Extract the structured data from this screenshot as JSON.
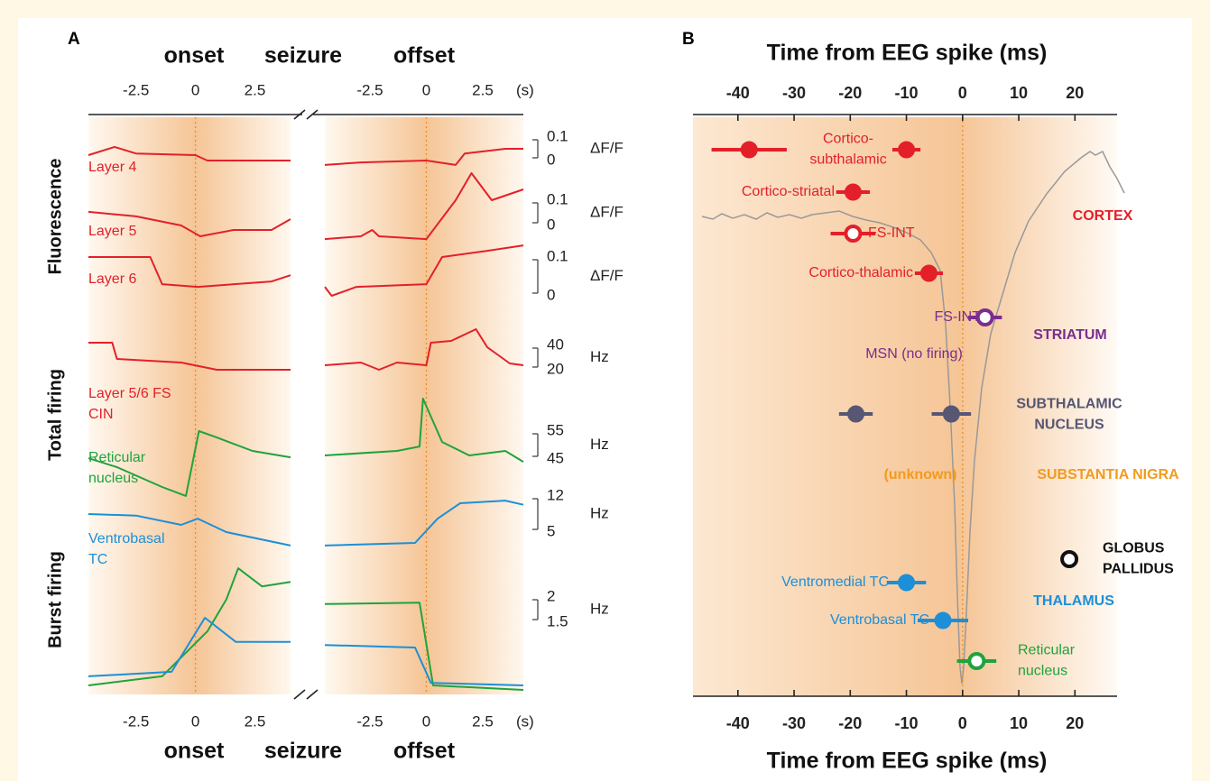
{
  "panel_a": {
    "label": "A",
    "header": [
      "onset",
      "seizure",
      "offset"
    ],
    "x_unit": "(s)",
    "onset": {
      "xlim": [
        -4.5,
        4
      ],
      "xticks": [
        -2.5,
        0,
        2.5
      ]
    },
    "offset": {
      "xlim": [
        -4.5,
        4.3
      ],
      "xticks": [
        -2.5,
        0,
        2.5
      ]
    },
    "groups": [
      "Fluorescence",
      "Total firing",
      "Burst firing"
    ],
    "rows": [
      {
        "ticks": [
          0.1,
          0
        ],
        "unit": "ΔF/F",
        "traces": [
          {
            "name_lines": [
              "Layer 4"
            ],
            "color": "#e3202a",
            "onset": {
              "x": [
                -4.5,
                -3.4,
                -2.5,
                0,
                0.5,
                4
              ],
              "values": [
                0.023,
                0.058,
                0.03,
                0.023,
                0,
                0
              ]
            },
            "offset": {
              "x": [
                -4.5,
                -2.9,
                0,
                1.3,
                1.7,
                3.5,
                4.3
              ],
              "values": [
                -0.019,
                -0.008,
                0,
                -0.019,
                0.03,
                0.05,
                0.05
              ]
            }
          }
        ]
      },
      {
        "ticks": [
          0.1,
          0
        ],
        "unit": "ΔF/F",
        "traces": [
          {
            "name_lines": [
              "Layer 5"
            ],
            "color": "#e3202a",
            "onset": {
              "x": [
                -4.5,
                -2.5,
                -0.6,
                0.2,
                1.6,
                3.2,
                4
              ],
              "values": [
                0.054,
                0.036,
                0,
                -0.043,
                -0.018,
                -0.018,
                0.025
              ]
            },
            "offset": {
              "x": [
                -4.5,
                -2.9,
                -2.4,
                -2.1,
                0,
                1.3,
                2,
                2.9,
                4.3
              ],
              "values": [
                -0.054,
                -0.043,
                -0.018,
                -0.043,
                -0.054,
                0.1,
                0.207,
                0.1,
                0.143
              ]
            }
          }
        ]
      },
      {
        "ticks": [
          0.1,
          0
        ],
        "unit": "ΔF/F",
        "traces": [
          {
            "name_lines": [
              "Layer 6"
            ],
            "color": "#e3202a",
            "onset": {
              "x": [
                -4.5,
                -1.9,
                -1.4,
                0.1,
                3.2,
                4
              ],
              "values": [
                0.1,
                0.1,
                0.03,
                0.023,
                0.037,
                0.053
              ]
            },
            "offset": {
              "x": [
                -4.5,
                -4.2,
                -3.1,
                0,
                0.7,
                2.7,
                4.3
              ],
              "values": [
                0.023,
                0,
                0.023,
                0.03,
                0.1,
                0.116,
                0.13
              ]
            }
          }
        ]
      },
      {
        "ticks": [
          40,
          20
        ],
        "unit": "Hz",
        "traces": [
          {
            "name_lines": [
              "Layer 5/6 FS",
              "CIN"
            ],
            "color": "#e3202a",
            "onset": {
              "x": [
                -4.5,
                -3.5,
                -3.3,
                -0.6,
                0.9,
                4
              ],
              "values": [
                42.2,
                42.2,
                28.9,
                25.9,
                20,
                20
              ]
            },
            "offset": {
              "x": [
                -4.5,
                -2.9,
                -2.1,
                -1.3,
                0,
                0.2,
                1.1,
                2.2,
                2.7,
                3.7,
                4.3
              ],
              "values": [
                23.7,
                25.9,
                20,
                25.9,
                23.7,
                42.2,
                43.7,
                53.3,
                38.5,
                25.2,
                23.7
              ]
            }
          }
        ]
      },
      {
        "ticks": [
          55,
          45
        ],
        "unit": "Hz",
        "traces": [
          {
            "name_lines": [
              "Reticular",
              "nucleus"
            ],
            "color": "#1fa33d",
            "onset": {
              "x": [
                -4.5,
                -3.3,
                -1.4,
                -0.4,
                0.15,
                0.9,
                2.4,
                4
              ],
              "values": [
                45.3,
                42.1,
                35,
                31.8,
                55,
                52.7,
                47.9,
                45.6
              ]
            },
            "offset": {
              "x": [
                -4.5,
                -1.3,
                -0.3,
                -0.15,
                0.7,
                1.9,
                3.5,
                4.3
              ],
              "values": [
                46.3,
                47.9,
                49.5,
                66.6,
                51.1,
                46.3,
                47.9,
                44
              ]
            }
          }
        ]
      },
      {
        "ticks": [
          12,
          5
        ],
        "unit": "Hz",
        "traces": [
          {
            "name_lines": [
              "Ventrobasal",
              "TC"
            ],
            "color": "#1c8fd8",
            "onset": {
              "x": [
                -4.5,
                -2.5,
                -0.6,
                0.1,
                1.3,
                4
              ],
              "values": [
                8.5,
                8.2,
                6.4,
                7.6,
                5,
                2.4
              ]
            },
            "offset": {
              "x": [
                -4.5,
                -0.5,
                0.5,
                1.5,
                3.5,
                4.3
              ],
              "values": [
                2.4,
                2.9,
                7.6,
                10.6,
                11.1,
                10.3
              ]
            }
          }
        ]
      },
      {
        "ticks": [
          2,
          1.5
        ],
        "unit": "Hz",
        "traces": [
          {
            "color": "#1fa33d",
            "onset": {
              "x": [
                -4.5,
                -1.4,
                0.5,
                1.3,
                1.8,
                2.8,
                4
              ],
              "values": [
                0.25,
                0.43,
                1.32,
                1.95,
                2.57,
                2.21,
                2.3
              ]
            },
            "offset": {
              "x": [
                -4.5,
                -0.3,
                0.3,
                4.3
              ],
              "values": [
                1.86,
                1.89,
                0.25,
                0.16
              ]
            }
          },
          {
            "color": "#1c8fd8",
            "onset": {
              "x": [
                -4.5,
                -1,
                0.4,
                1.7,
                4
              ],
              "values": [
                0.43,
                0.52,
                1.59,
                1.11,
                1.11
              ]
            },
            "offset": {
              "x": [
                -4.5,
                -0.5,
                0.2,
                4.3
              ],
              "values": [
                1.05,
                1,
                0.3,
                0.25
              ]
            }
          }
        ]
      }
    ]
  },
  "panel_b": {
    "label": "B",
    "title": "Time from EEG spike (ms)",
    "xlim": [
      -48,
      27.5
    ],
    "xticks": [
      -40,
      -30,
      -20,
      -10,
      0,
      10,
      20
    ],
    "neurons": [
      {
        "label_lines": [
          "Cortico-",
          "subthalamic"
        ],
        "color": "#e3202a",
        "values": [
          -38,
          -10
        ],
        "errors": [
          6.7,
          2.5
        ],
        "open": false
      },
      {
        "label_lines": [
          "Cortico-striatal"
        ],
        "color": "#e3202a",
        "values": [
          -19.5
        ],
        "errors": [
          3
        ],
        "open": false
      },
      {
        "label_lines": [
          "FS-INT"
        ],
        "color": "#e3202a",
        "values": [
          -19.5
        ],
        "errors": [
          4
        ],
        "open": true
      },
      {
        "label_lines": [
          "Cortico-thalamic"
        ],
        "color": "#e3202a",
        "values": [
          -6
        ],
        "errors": [
          2.5
        ],
        "open": false
      },
      {
        "label_lines": [
          "FS-INT"
        ],
        "color": "#7b2d8e",
        "values": [
          4
        ],
        "errors": [
          3
        ],
        "open": true
      },
      {
        "label_lines": [
          "MSN (no firing)"
        ],
        "color": "#7b2d8e",
        "values": [],
        "errors": [],
        "open": false
      },
      {
        "color": "#575774",
        "values": [
          -19,
          -2
        ],
        "errors": [
          3,
          3.5
        ],
        "open": false
      },
      {
        "label_lines": [
          "(unknown)"
        ],
        "color": "#f39a1e",
        "values": [],
        "errors": [],
        "open": false
      },
      {
        "color": "#111111",
        "values": [
          19
        ],
        "open": true
      },
      {
        "label_lines": [
          "Ventromedial TC"
        ],
        "color": "#1c8fd8",
        "values": [
          -10
        ],
        "errors": [
          3.5
        ],
        "open": false
      },
      {
        "label_lines": [
          "Ventrobasal TC"
        ],
        "color": "#1c8fd8",
        "values": [
          -3.5
        ],
        "errors": [
          4.5
        ],
        "open": false
      },
      {
        "label_lines": [
          "Reticular",
          "nucleus"
        ],
        "color": "#1fa33d",
        "values": [
          2.5
        ],
        "errors": [
          3.5
        ],
        "open": true
      }
    ],
    "regions": [
      {
        "lines": [
          "CORTEX"
        ],
        "color": "#e3202a"
      },
      {
        "lines": [
          "STRIATUM"
        ],
        "color": "#7b2d8e"
      },
      {
        "lines": [
          "SUBTHALAMIC",
          "NUCLEUS"
        ],
        "color": "#575774"
      },
      {
        "lines": [
          "SUBSTANTIA NIGRA"
        ],
        "color": "#f39a1e"
      },
      {
        "lines": [
          "GLOBUS",
          "PALLIDUS"
        ],
        "color": "#111111"
      },
      {
        "lines": [
          "THALAMUS"
        ],
        "color": "#1c8fd8"
      }
    ]
  }
}
